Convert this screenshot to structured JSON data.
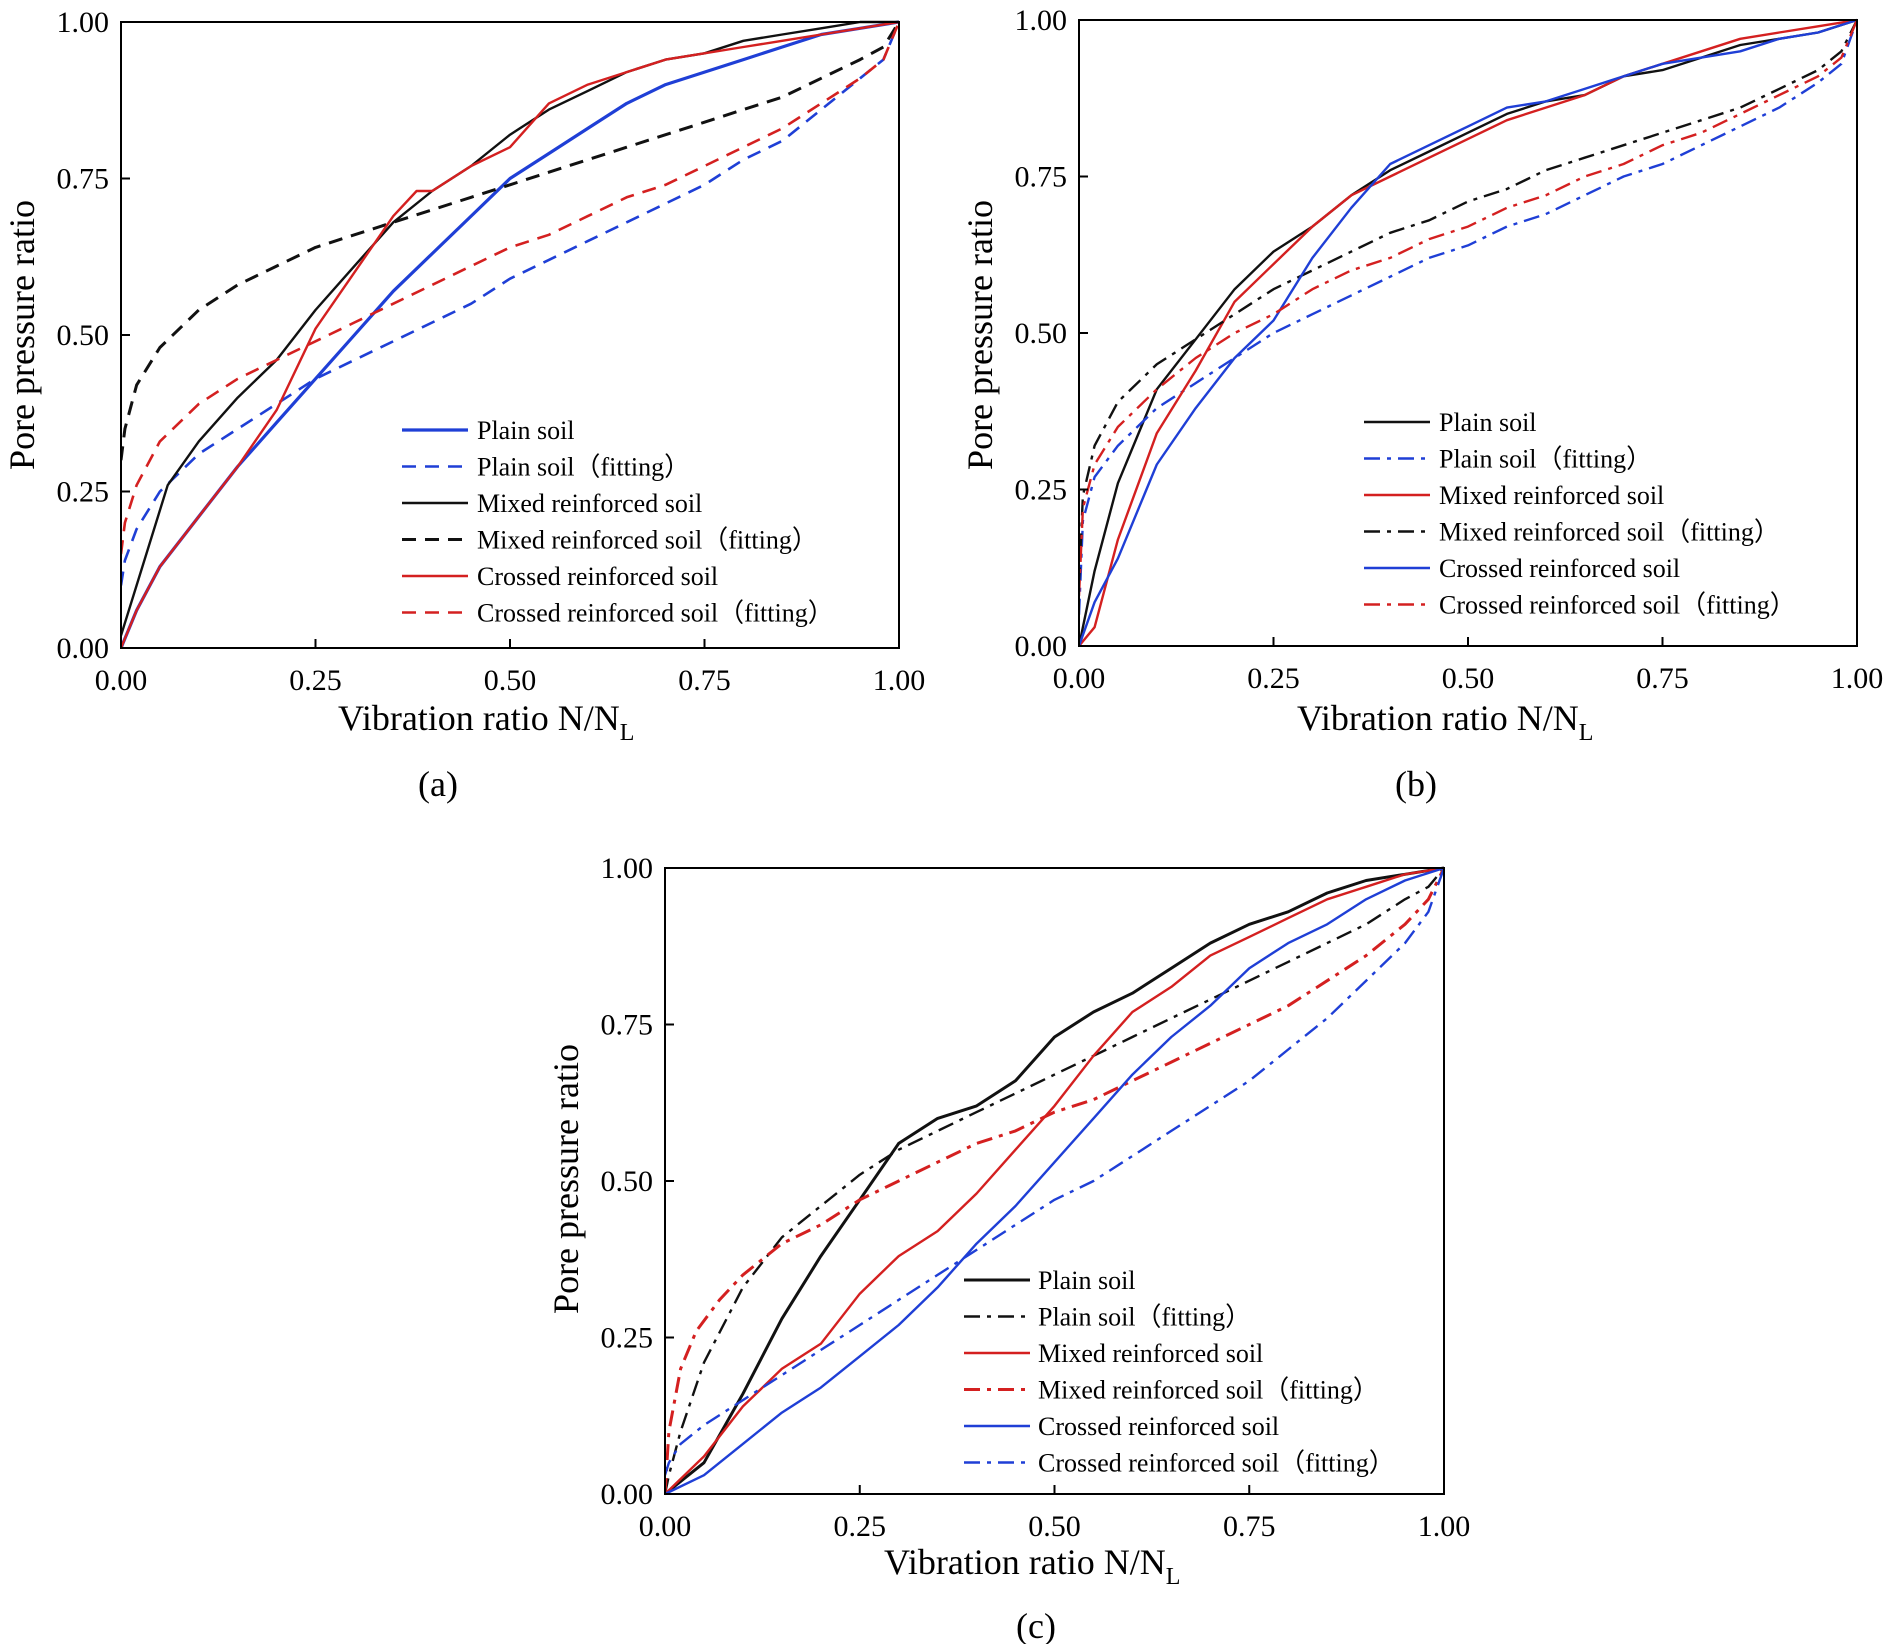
{
  "chart_data": [
    {
      "type": "line",
      "panel_label": "(a)",
      "xlabel": "Vibration ratio N/N",
      "xlabel_sub": "L",
      "ylabel": "Pore pressure ratio",
      "xlim": [
        0,
        1
      ],
      "ylim": [
        0,
        1
      ],
      "xticks": [
        "0.00",
        "0.25",
        "0.50",
        "0.75",
        "1.00"
      ],
      "yticks": [
        "0.00",
        "0.25",
        "0.50",
        "0.75",
        "1.00"
      ],
      "legend_position": "bottom-right",
      "series": [
        {
          "name": "Plain soil",
          "color": "#1f3fd6",
          "dash": "solid",
          "width": 3.2,
          "x": [
            0,
            0.02,
            0.05,
            0.1,
            0.15,
            0.2,
            0.25,
            0.3,
            0.35,
            0.4,
            0.45,
            0.5,
            0.55,
            0.6,
            0.65,
            0.7,
            0.75,
            0.8,
            0.85,
            0.9,
            0.95,
            1.0
          ],
          "y": [
            0,
            0.06,
            0.13,
            0.21,
            0.29,
            0.36,
            0.43,
            0.5,
            0.57,
            0.63,
            0.69,
            0.75,
            0.79,
            0.83,
            0.87,
            0.9,
            0.92,
            0.94,
            0.96,
            0.98,
            0.99,
            1.0
          ]
        },
        {
          "name": "Plain soil（fitting）",
          "color": "#1f3fd6",
          "dash": "dash",
          "width": 2.6,
          "x": [
            0,
            0.005,
            0.02,
            0.05,
            0.1,
            0.15,
            0.2,
            0.25,
            0.3,
            0.35,
            0.4,
            0.45,
            0.5,
            0.55,
            0.6,
            0.65,
            0.7,
            0.75,
            0.8,
            0.85,
            0.9,
            0.95,
            0.98,
            1.0
          ],
          "y": [
            0.1,
            0.14,
            0.19,
            0.25,
            0.31,
            0.35,
            0.39,
            0.43,
            0.46,
            0.49,
            0.52,
            0.55,
            0.59,
            0.62,
            0.65,
            0.68,
            0.71,
            0.74,
            0.78,
            0.81,
            0.86,
            0.91,
            0.94,
            1.0
          ]
        },
        {
          "name": "Mixed reinforced soil",
          "color": "#111111",
          "dash": "solid",
          "width": 2.4,
          "x": [
            0,
            0.02,
            0.06,
            0.1,
            0.15,
            0.2,
            0.25,
            0.3,
            0.35,
            0.4,
            0.45,
            0.5,
            0.55,
            0.6,
            0.65,
            0.7,
            0.75,
            0.8,
            0.85,
            0.9,
            0.95,
            1.0
          ],
          "y": [
            0.02,
            0.1,
            0.26,
            0.33,
            0.4,
            0.46,
            0.54,
            0.61,
            0.68,
            0.73,
            0.77,
            0.82,
            0.86,
            0.89,
            0.92,
            0.94,
            0.95,
            0.97,
            0.98,
            0.99,
            1.0,
            1.0
          ]
        },
        {
          "name": "Mixed reinforced soil（fitting）",
          "color": "#111111",
          "dash": "dash",
          "width": 3.0,
          "x": [
            0,
            0.005,
            0.02,
            0.05,
            0.1,
            0.15,
            0.2,
            0.25,
            0.3,
            0.35,
            0.4,
            0.45,
            0.5,
            0.55,
            0.6,
            0.65,
            0.7,
            0.75,
            0.8,
            0.85,
            0.9,
            0.95,
            0.98,
            1.0
          ],
          "y": [
            0.3,
            0.35,
            0.42,
            0.48,
            0.54,
            0.58,
            0.61,
            0.64,
            0.66,
            0.68,
            0.7,
            0.72,
            0.74,
            0.76,
            0.78,
            0.8,
            0.82,
            0.84,
            0.86,
            0.88,
            0.91,
            0.94,
            0.96,
            1.0
          ]
        },
        {
          "name": "Crossed reinforced soil",
          "color": "#d42020",
          "dash": "solid",
          "width": 2.4,
          "x": [
            0,
            0.02,
            0.05,
            0.1,
            0.15,
            0.2,
            0.25,
            0.3,
            0.35,
            0.38,
            0.4,
            0.45,
            0.5,
            0.55,
            0.6,
            0.65,
            0.7,
            0.75,
            0.8,
            0.85,
            0.9,
            0.95,
            1.0
          ],
          "y": [
            0,
            0.06,
            0.13,
            0.21,
            0.29,
            0.38,
            0.51,
            0.6,
            0.69,
            0.73,
            0.73,
            0.77,
            0.8,
            0.87,
            0.9,
            0.92,
            0.94,
            0.95,
            0.96,
            0.97,
            0.98,
            0.99,
            1.0
          ]
        },
        {
          "name": "Crossed reinforced soil（fitting）",
          "color": "#d42020",
          "dash": "dash",
          "width": 2.6,
          "x": [
            0,
            0.005,
            0.02,
            0.05,
            0.1,
            0.15,
            0.2,
            0.25,
            0.3,
            0.35,
            0.4,
            0.45,
            0.5,
            0.55,
            0.6,
            0.65,
            0.7,
            0.75,
            0.8,
            0.85,
            0.9,
            0.95,
            0.98,
            1.0
          ],
          "y": [
            0.15,
            0.2,
            0.26,
            0.33,
            0.39,
            0.43,
            0.46,
            0.49,
            0.52,
            0.55,
            0.58,
            0.61,
            0.64,
            0.66,
            0.69,
            0.72,
            0.74,
            0.77,
            0.8,
            0.83,
            0.87,
            0.91,
            0.94,
            1.0
          ]
        }
      ]
    },
    {
      "type": "line",
      "panel_label": "(b)",
      "xlabel": "Vibration ratio N/N",
      "xlabel_sub": "L",
      "ylabel": "Pore pressure ratio",
      "xlim": [
        0,
        1
      ],
      "ylim": [
        0,
        1
      ],
      "xticks": [
        "0.00",
        "0.25",
        "0.50",
        "0.75",
        "1.00"
      ],
      "yticks": [
        "0.00",
        "0.25",
        "0.50",
        "0.75",
        "1.00"
      ],
      "legend_position": "bottom-right",
      "series": [
        {
          "name": "Plain soil",
          "color": "#111111",
          "dash": "solid",
          "width": 2.4,
          "x": [
            0,
            0.02,
            0.05,
            0.1,
            0.15,
            0.2,
            0.25,
            0.3,
            0.35,
            0.4,
            0.45,
            0.5,
            0.55,
            0.6,
            0.65,
            0.7,
            0.75,
            0.8,
            0.85,
            0.9,
            0.95,
            1.0
          ],
          "y": [
            0,
            0.12,
            0.26,
            0.41,
            0.49,
            0.57,
            0.63,
            0.67,
            0.72,
            0.76,
            0.79,
            0.82,
            0.85,
            0.87,
            0.88,
            0.91,
            0.92,
            0.94,
            0.96,
            0.97,
            0.98,
            1.0
          ]
        },
        {
          "name": "Plain soil（fitting）",
          "color": "#1f3fd6",
          "dash": "dashdot",
          "width": 2.4,
          "x": [
            0,
            0.005,
            0.02,
            0.05,
            0.1,
            0.15,
            0.2,
            0.25,
            0.3,
            0.35,
            0.4,
            0.45,
            0.5,
            0.55,
            0.6,
            0.65,
            0.7,
            0.75,
            0.8,
            0.85,
            0.9,
            0.95,
            0.98,
            1.0
          ],
          "y": [
            0.05,
            0.2,
            0.27,
            0.32,
            0.38,
            0.42,
            0.46,
            0.5,
            0.53,
            0.56,
            0.59,
            0.62,
            0.64,
            0.67,
            0.69,
            0.72,
            0.75,
            0.77,
            0.8,
            0.83,
            0.86,
            0.9,
            0.93,
            1.0
          ]
        },
        {
          "name": "Mixed reinforced soil",
          "color": "#d42020",
          "dash": "solid",
          "width": 2.4,
          "x": [
            0,
            0.02,
            0.05,
            0.1,
            0.15,
            0.2,
            0.25,
            0.3,
            0.35,
            0.4,
            0.45,
            0.5,
            0.55,
            0.6,
            0.65,
            0.7,
            0.75,
            0.8,
            0.85,
            0.9,
            0.95,
            1.0
          ],
          "y": [
            0,
            0.03,
            0.17,
            0.34,
            0.44,
            0.55,
            0.61,
            0.67,
            0.72,
            0.75,
            0.78,
            0.81,
            0.84,
            0.86,
            0.88,
            0.91,
            0.93,
            0.95,
            0.97,
            0.98,
            0.99,
            1.0
          ]
        },
        {
          "name": "Mixed reinforced soil（fitting）",
          "color": "#111111",
          "dash": "dashdot",
          "width": 2.4,
          "x": [
            0,
            0.005,
            0.02,
            0.05,
            0.1,
            0.15,
            0.2,
            0.25,
            0.3,
            0.35,
            0.4,
            0.45,
            0.5,
            0.55,
            0.6,
            0.65,
            0.7,
            0.75,
            0.8,
            0.85,
            0.9,
            0.95,
            0.98,
            1.0
          ],
          "y": [
            0.1,
            0.24,
            0.32,
            0.39,
            0.45,
            0.49,
            0.53,
            0.57,
            0.6,
            0.63,
            0.66,
            0.68,
            0.71,
            0.73,
            0.76,
            0.78,
            0.8,
            0.82,
            0.84,
            0.86,
            0.89,
            0.92,
            0.95,
            1.0
          ]
        },
        {
          "name": "Crossed reinforced soil",
          "color": "#1f3fd6",
          "dash": "solid",
          "width": 2.4,
          "x": [
            0,
            0.02,
            0.05,
            0.1,
            0.15,
            0.2,
            0.25,
            0.3,
            0.35,
            0.4,
            0.45,
            0.5,
            0.55,
            0.6,
            0.65,
            0.7,
            0.75,
            0.8,
            0.85,
            0.9,
            0.95,
            1.0
          ],
          "y": [
            0,
            0.07,
            0.14,
            0.29,
            0.38,
            0.46,
            0.52,
            0.62,
            0.7,
            0.77,
            0.8,
            0.83,
            0.86,
            0.87,
            0.89,
            0.91,
            0.93,
            0.94,
            0.95,
            0.97,
            0.98,
            1.0
          ]
        },
        {
          "name": "Crossed reinforced soil（fitting）",
          "color": "#d42020",
          "dash": "dashdot",
          "width": 2.4,
          "x": [
            0,
            0.005,
            0.02,
            0.05,
            0.1,
            0.15,
            0.2,
            0.25,
            0.3,
            0.35,
            0.4,
            0.45,
            0.5,
            0.55,
            0.6,
            0.65,
            0.7,
            0.75,
            0.8,
            0.85,
            0.9,
            0.95,
            0.98,
            1.0
          ],
          "y": [
            0.08,
            0.22,
            0.29,
            0.35,
            0.41,
            0.46,
            0.5,
            0.53,
            0.57,
            0.6,
            0.62,
            0.65,
            0.67,
            0.7,
            0.72,
            0.75,
            0.77,
            0.8,
            0.82,
            0.85,
            0.88,
            0.91,
            0.94,
            1.0
          ]
        }
      ]
    },
    {
      "type": "line",
      "panel_label": "(c)",
      "xlabel": "Vibration ratio N/N",
      "xlabel_sub": "L",
      "ylabel": "Pore pressure ratio",
      "xlim": [
        0,
        1
      ],
      "ylim": [
        0,
        1
      ],
      "xticks": [
        "0.00",
        "0.25",
        "0.50",
        "0.75",
        "1.00"
      ],
      "yticks": [
        "0.00",
        "0.25",
        "0.50",
        "0.75",
        "1.00"
      ],
      "legend_position": "bottom-right",
      "series": [
        {
          "name": "Plain soil",
          "color": "#111111",
          "dash": "solid",
          "width": 3.0,
          "x": [
            0,
            0.05,
            0.1,
            0.15,
            0.2,
            0.25,
            0.3,
            0.35,
            0.4,
            0.45,
            0.5,
            0.55,
            0.6,
            0.65,
            0.7,
            0.75,
            0.8,
            0.85,
            0.9,
            0.95,
            1.0
          ],
          "y": [
            0,
            0.05,
            0.16,
            0.28,
            0.38,
            0.47,
            0.56,
            0.6,
            0.62,
            0.66,
            0.73,
            0.77,
            0.8,
            0.84,
            0.88,
            0.91,
            0.93,
            0.96,
            0.98,
            0.99,
            1.0
          ]
        },
        {
          "name": "Plain soil（fitting）",
          "color": "#111111",
          "dash": "dashdot",
          "width": 2.4,
          "x": [
            0,
            0.005,
            0.02,
            0.05,
            0.1,
            0.15,
            0.2,
            0.25,
            0.3,
            0.35,
            0.4,
            0.45,
            0.5,
            0.55,
            0.6,
            0.65,
            0.7,
            0.75,
            0.8,
            0.85,
            0.9,
            0.95,
            0.98,
            1.0
          ],
          "y": [
            0,
            0.03,
            0.1,
            0.21,
            0.33,
            0.41,
            0.46,
            0.51,
            0.55,
            0.58,
            0.61,
            0.64,
            0.67,
            0.7,
            0.73,
            0.76,
            0.79,
            0.82,
            0.85,
            0.88,
            0.91,
            0.95,
            0.97,
            1.0
          ]
        },
        {
          "name": "Mixed reinforced soil",
          "color": "#d42020",
          "dash": "solid",
          "width": 2.4,
          "x": [
            0,
            0.05,
            0.1,
            0.15,
            0.2,
            0.25,
            0.3,
            0.35,
            0.4,
            0.45,
            0.5,
            0.55,
            0.6,
            0.65,
            0.7,
            0.75,
            0.8,
            0.85,
            0.9,
            0.95,
            1.0
          ],
          "y": [
            0,
            0.06,
            0.14,
            0.2,
            0.24,
            0.32,
            0.38,
            0.42,
            0.48,
            0.55,
            0.62,
            0.7,
            0.77,
            0.81,
            0.86,
            0.89,
            0.92,
            0.95,
            0.97,
            0.99,
            1.0
          ]
        },
        {
          "name": "Mixed reinforced soil（fitting）",
          "color": "#d42020",
          "dash": "dashdot",
          "width": 3.0,
          "x": [
            0,
            0.005,
            0.02,
            0.04,
            0.07,
            0.1,
            0.15,
            0.2,
            0.25,
            0.3,
            0.35,
            0.4,
            0.45,
            0.5,
            0.55,
            0.6,
            0.65,
            0.7,
            0.75,
            0.8,
            0.85,
            0.9,
            0.95,
            0.98,
            1.0
          ],
          "y": [
            0,
            0.1,
            0.2,
            0.26,
            0.31,
            0.35,
            0.4,
            0.43,
            0.47,
            0.5,
            0.53,
            0.56,
            0.58,
            0.61,
            0.63,
            0.66,
            0.69,
            0.72,
            0.75,
            0.78,
            0.82,
            0.86,
            0.91,
            0.95,
            1.0
          ]
        },
        {
          "name": "Crossed reinforced soil",
          "color": "#1f3fd6",
          "dash": "solid",
          "width": 2.4,
          "x": [
            0,
            0.05,
            0.1,
            0.15,
            0.2,
            0.25,
            0.3,
            0.35,
            0.4,
            0.45,
            0.5,
            0.55,
            0.6,
            0.65,
            0.7,
            0.75,
            0.8,
            0.85,
            0.9,
            0.95,
            1.0
          ],
          "y": [
            0,
            0.03,
            0.08,
            0.13,
            0.17,
            0.22,
            0.27,
            0.33,
            0.4,
            0.46,
            0.53,
            0.6,
            0.67,
            0.73,
            0.78,
            0.84,
            0.88,
            0.91,
            0.95,
            0.98,
            1.0
          ]
        },
        {
          "name": "Crossed reinforced soil（fitting）",
          "color": "#1f3fd6",
          "dash": "dashdot",
          "width": 2.4,
          "x": [
            0,
            0.005,
            0.02,
            0.05,
            0.1,
            0.15,
            0.2,
            0.25,
            0.3,
            0.35,
            0.4,
            0.45,
            0.5,
            0.55,
            0.6,
            0.65,
            0.7,
            0.75,
            0.8,
            0.85,
            0.9,
            0.95,
            0.98,
            1.0
          ],
          "y": [
            0.03,
            0.05,
            0.08,
            0.11,
            0.15,
            0.19,
            0.23,
            0.27,
            0.31,
            0.35,
            0.39,
            0.43,
            0.47,
            0.5,
            0.54,
            0.58,
            0.62,
            0.66,
            0.71,
            0.76,
            0.82,
            0.88,
            0.93,
            1.0
          ]
        }
      ]
    }
  ]
}
